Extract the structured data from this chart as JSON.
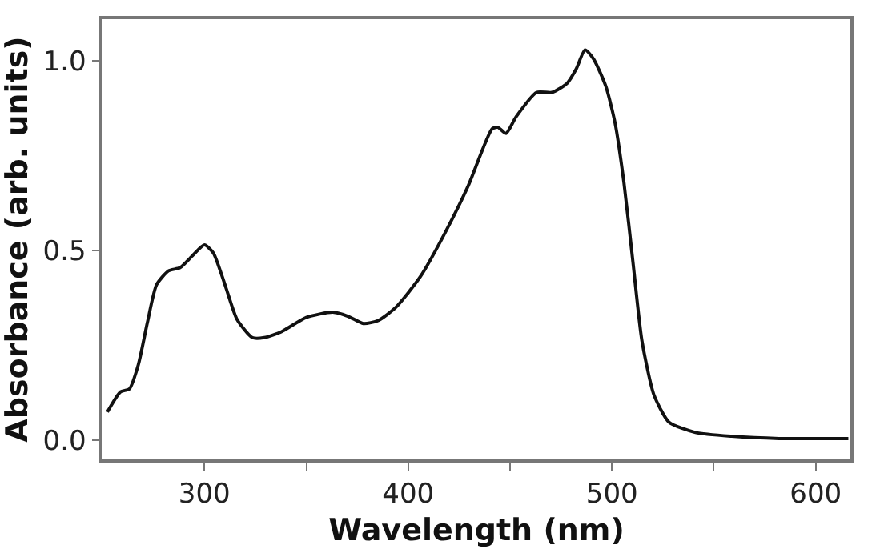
{
  "chart_data": {
    "type": "line",
    "xlabel": "Wavelength (nm)",
    "ylabel": "Absorbance (arb. units)",
    "xlim": [
      250,
      617
    ],
    "ylim": [
      -0.05,
      1.11
    ],
    "xticks": [
      300,
      {
        "value": 350,
        "label": null
      },
      400,
      {
        "value": 450,
        "label": null
      },
      500,
      {
        "value": 550,
        "label": null
      },
      600
    ],
    "yticks": [
      {
        "value": 0,
        "label": "0.0"
      },
      0.5,
      {
        "value": 1,
        "label": "1.0"
      }
    ],
    "marker": "none",
    "line_style": "solid",
    "x": [
      252.4,
      258.8,
      263.2,
      267.6,
      272,
      276.5,
      282.4,
      288,
      294,
      300,
      304.4,
      310.3,
      316,
      323.5,
      329.4,
      338,
      350,
      363,
      370.6,
      378,
      385.3,
      394,
      405.9,
      417.6,
      429.4,
      441.2,
      444,
      448,
      453,
      463,
      470.6,
      478,
      482.4,
      486.8,
      491,
      497,
      501.5,
      505.9,
      510.3,
      514.7,
      520.6,
      528,
      541,
      558.8,
      582,
      616
    ],
    "series": [
      {
        "color": "#111111",
        "values": [
          0.075,
          0.128,
          0.136,
          0.2,
          0.31,
          0.41,
          0.447,
          0.455,
          0.486,
          0.515,
          0.494,
          0.407,
          0.319,
          0.271,
          0.271,
          0.287,
          0.324,
          0.338,
          0.327,
          0.308,
          0.316,
          0.351,
          0.431,
          0.542,
          0.67,
          0.821,
          0.825,
          0.809,
          0.853,
          0.917,
          0.917,
          0.941,
          0.978,
          1.029,
          1.005,
          0.933,
          0.837,
          0.678,
          0.47,
          0.263,
          0.12,
          0.048,
          0.021,
          0.011,
          0.005,
          0.005
        ]
      }
    ]
  }
}
